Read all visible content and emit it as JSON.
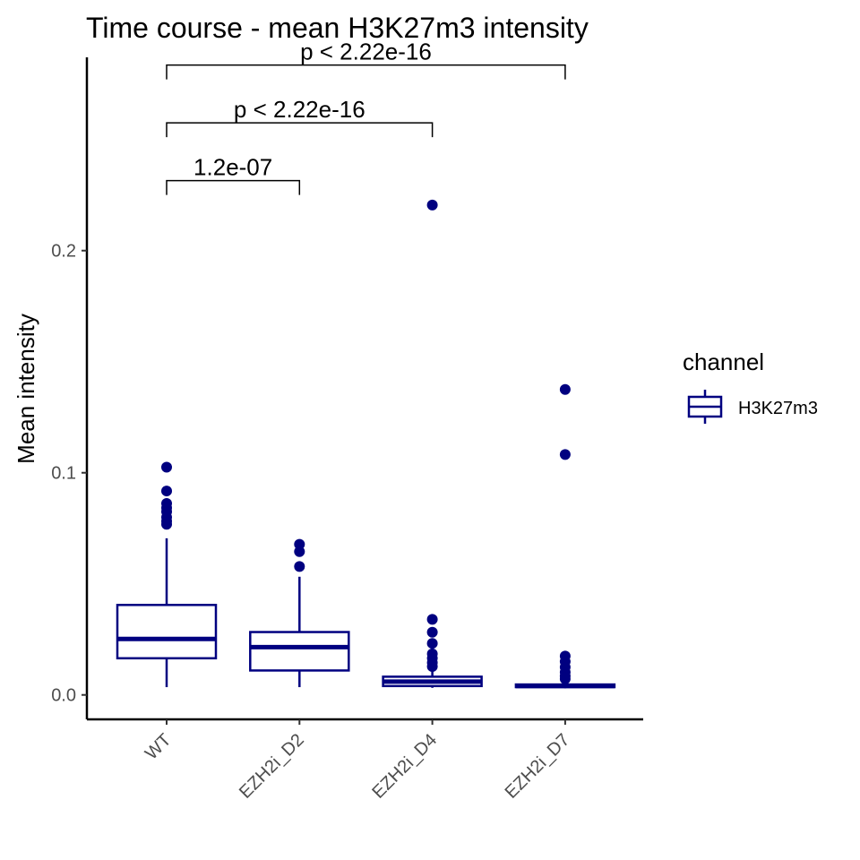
{
  "chart_data": {
    "type": "boxplot",
    "title": "Time course - mean H3K27m3 intensity",
    "xlabel": "",
    "ylabel": "Mean intensity",
    "ylim": [
      -0.011,
      0.287
    ],
    "y_ticks": [
      0.0,
      0.1,
      0.2
    ],
    "y_tick_labels": [
      "0.0",
      "0.1",
      "0.2"
    ],
    "categories": [
      "WT",
      "EZH2i_D2",
      "EZH2i_D4",
      "EZH2i_D7"
    ],
    "series": [
      {
        "name": "H3K27m3",
        "color": "#000080",
        "boxes": [
          {
            "category": "WT",
            "whisker_low": 0.0035,
            "q1": 0.0165,
            "median": 0.0252,
            "q3": 0.0405,
            "whisker_high": 0.0705,
            "outliers": [
              0.0768,
              0.0782,
              0.08,
              0.0825,
              0.0842,
              0.0862,
              0.0918,
              0.1025
            ]
          },
          {
            "category": "EZH2i_D2",
            "whisker_low": 0.0035,
            "q1": 0.011,
            "median": 0.0215,
            "q3": 0.0283,
            "whisker_high": 0.0532,
            "outliers": [
              0.0578,
              0.0645,
              0.0678
            ]
          },
          {
            "category": "EZH2i_D4",
            "whisker_low": 0.0032,
            "q1": 0.004,
            "median": 0.006,
            "q3": 0.0082,
            "whisker_high": 0.0118,
            "outliers": [
              0.0128,
              0.0145,
              0.0165,
              0.0185,
              0.0232,
              0.0282,
              0.034,
              0.2205
            ]
          },
          {
            "category": "EZH2i_D7",
            "whisker_low": 0.003,
            "q1": 0.0035,
            "median": 0.004,
            "q3": 0.0047,
            "whisker_high": 0.0058,
            "outliers": [
              0.0072,
              0.0085,
              0.0102,
              0.0125,
              0.015,
              0.0175,
              0.1082,
              0.1375
            ]
          }
        ]
      }
    ],
    "comparisons": [
      {
        "from": "WT",
        "to": "EZH2i_D2",
        "label": "1.2e-07",
        "y": 0.2315
      },
      {
        "from": "WT",
        "to": "EZH2i_D4",
        "label": "p < 2.22e-16",
        "y": 0.2575
      },
      {
        "from": "WT",
        "to": "EZH2i_D7",
        "label": "p < 2.22e-16",
        "y": 0.2835
      }
    ],
    "legend": {
      "title": "channel",
      "entries": [
        "H3K27m3"
      ],
      "position": "right"
    },
    "grid": false
  }
}
